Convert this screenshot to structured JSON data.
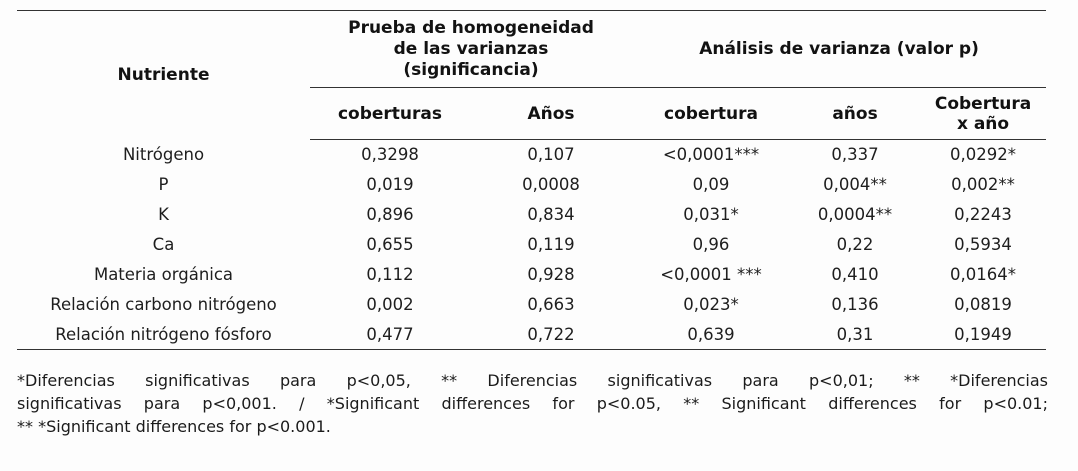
{
  "table": {
    "row_header": "Nutriente",
    "group1_title_lines": [
      "Prueba de homogeneidad",
      "de las varianzas",
      "(significancia)"
    ],
    "group2_title": "Análisis de varianza (valor p)",
    "subheaders": [
      "coberturas",
      "Años",
      "cobertura",
      "años"
    ],
    "subheader_last_lines": [
      "Cobertura",
      "x año"
    ],
    "rows": [
      {
        "nutrient": "Nitrógeno",
        "values": [
          "0,3298",
          "0,107",
          "<0,0001***",
          "0,337",
          "0,0292*"
        ]
      },
      {
        "nutrient": "P",
        "values": [
          "0,019",
          "0,0008",
          "0,09",
          "0,004**",
          "0,002**"
        ]
      },
      {
        "nutrient": "K",
        "values": [
          "0,896",
          "0,834",
          "0,031*",
          "0,0004**",
          "0,2243"
        ]
      },
      {
        "nutrient": "Ca",
        "values": [
          "0,655",
          "0,119",
          "0,96",
          "0,22",
          "0,5934"
        ]
      },
      {
        "nutrient": "Materia orgánica",
        "values": [
          "0,112",
          "0,928",
          "<0,0001 ***",
          "0,410",
          "0,0164*"
        ]
      },
      {
        "nutrient": "Relación carbono nitrógeno",
        "values": [
          "0,002",
          "0,663",
          "0,023*",
          "0,136",
          "0,0819"
        ]
      },
      {
        "nutrient": "Relación nitrógeno fósforo",
        "values": [
          "0,477",
          "0,722",
          "0,639",
          "0,31",
          "0,1949"
        ]
      }
    ]
  },
  "footnote": {
    "lines": [
      "*Diferencias significativas para p<0,05, ** Diferencias significativas para p<0,01; ** *Diferencias",
      "significativas para p<0,001. / *Significant differences for p<0.05, ** Significant differences for p<0.01;",
      "** *Significant differences for p<0.001."
    ]
  },
  "colors": {
    "background": "#fdfdfd",
    "text": "#1d1d1d",
    "rule": "#333333"
  }
}
